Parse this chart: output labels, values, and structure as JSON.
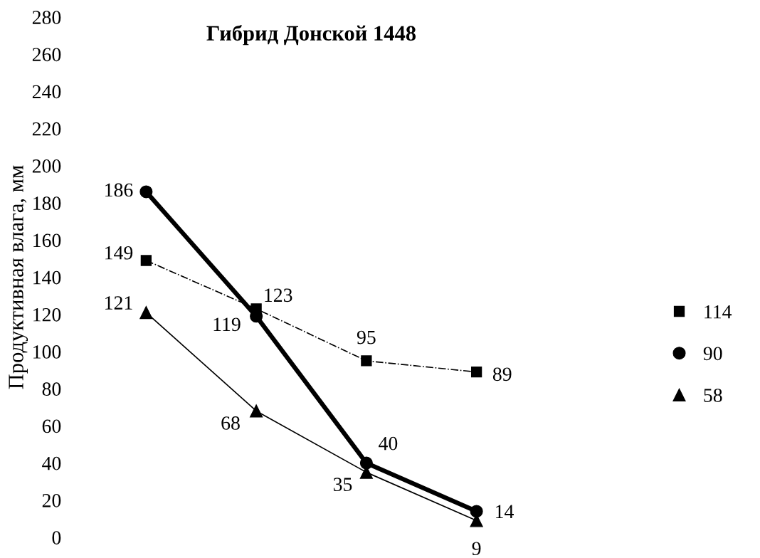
{
  "chart_data": {
    "type": "line",
    "title": "Гибрид Донской 1448",
    "ylabel": "Продуктивная влага, мм",
    "categories": [
      null,
      null,
      null,
      null
    ],
    "series": [
      {
        "name": "114",
        "color": "#000000",
        "values": [
          149,
          123,
          95,
          89
        ],
        "marker": "square",
        "line_style": "dashdot"
      },
      {
        "name": "90",
        "color": "#000000",
        "values": [
          186,
          119,
          40,
          14
        ],
        "marker": "circle",
        "line_style": "solid"
      },
      {
        "name": "58",
        "color": "#000000",
        "values": [
          121,
          68,
          35,
          9
        ],
        "marker": "triangle",
        "line_style": "solid"
      }
    ],
    "ylim": [
      0,
      280
    ],
    "yticks": [
      0,
      20,
      40,
      60,
      80,
      100,
      120,
      140,
      160,
      180,
      200,
      220,
      240,
      260,
      280
    ],
    "data_labels": true,
    "legend": "right",
    "grid": false
  }
}
